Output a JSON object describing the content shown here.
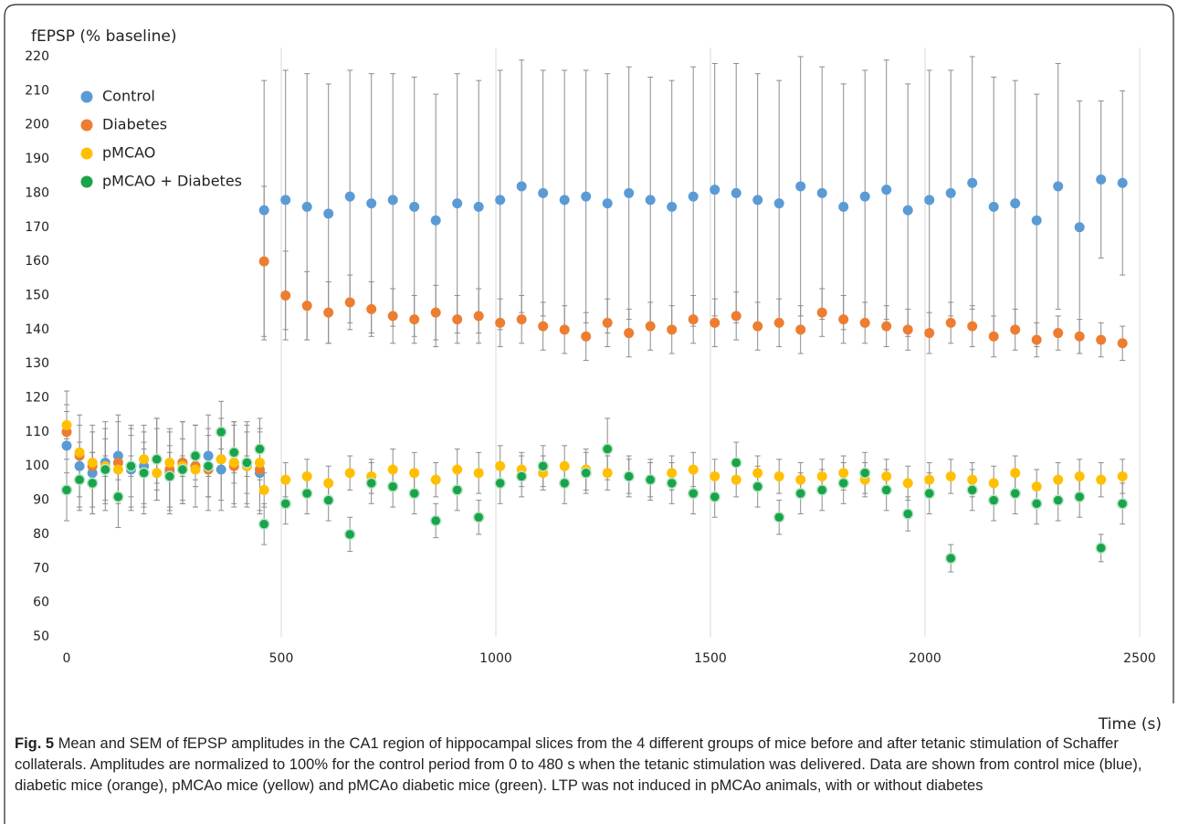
{
  "chart_data": {
    "type": "scatter",
    "y_label": "fEPSP (% baseline)",
    "x_label": "Time (s)",
    "x": [
      0,
      30,
      60,
      90,
      120,
      150,
      180,
      210,
      240,
      270,
      300,
      330,
      360,
      390,
      420,
      450,
      460,
      510,
      560,
      610,
      660,
      710,
      760,
      810,
      860,
      910,
      960,
      1010,
      1060,
      1110,
      1160,
      1210,
      1260,
      1310,
      1360,
      1410,
      1460,
      1510,
      1560,
      1610,
      1660,
      1710,
      1760,
      1810,
      1860,
      1910,
      1960,
      2010,
      2060,
      2110,
      2160,
      2210,
      2260,
      2310,
      2360,
      2410,
      2460
    ],
    "xlim": [
      0,
      2500
    ],
    "xticks": [
      0,
      500,
      1000,
      1500,
      2000,
      2500
    ],
    "ylim": [
      50,
      220
    ],
    "yticks": [
      50,
      60,
      70,
      80,
      90,
      100,
      110,
      120,
      130,
      140,
      150,
      160,
      170,
      180,
      190,
      200,
      210,
      220
    ],
    "grid": true,
    "legend": "top-left",
    "series": [
      {
        "name": "Control",
        "color": "#5b9bd5",
        "values": [
          106,
          100,
          98,
          101,
          103,
          99,
          100,
          102,
          98,
          101,
          100,
          103,
          99,
          101,
          100,
          98,
          175,
          178,
          176,
          174,
          179,
          177,
          178,
          176,
          172,
          177,
          176,
          178,
          182,
          180,
          178,
          179,
          177,
          180,
          178,
          176,
          179,
          181,
          180,
          178,
          177,
          182,
          180,
          176,
          179,
          181,
          175,
          178,
          180,
          183,
          176,
          177,
          172,
          182,
          170,
          184,
          183
        ],
        "errors": [
          12,
          12,
          12,
          12,
          12,
          12,
          12,
          12,
          12,
          12,
          12,
          12,
          12,
          12,
          12,
          12,
          38,
          38,
          39,
          38,
          37,
          38,
          37,
          38,
          37,
          38,
          37,
          38,
          37,
          36,
          38,
          37,
          38,
          37,
          36,
          37,
          38,
          37,
          38,
          37,
          36,
          38,
          37,
          36,
          37,
          38,
          37,
          38,
          36,
          37,
          38,
          36,
          37,
          36,
          37,
          23,
          27
        ]
      },
      {
        "name": "Diabetes",
        "color": "#ed7d31",
        "values": [
          110,
          103,
          100,
          99,
          101,
          100,
          98,
          102,
          99,
          101,
          100,
          99,
          102,
          100,
          101,
          99,
          160,
          150,
          147,
          145,
          148,
          146,
          144,
          143,
          145,
          143,
          144,
          142,
          143,
          141,
          140,
          138,
          142,
          139,
          141,
          140,
          143,
          142,
          144,
          141,
          142,
          140,
          145,
          143,
          142,
          141,
          140,
          139,
          142,
          141,
          138,
          140,
          137,
          139,
          138,
          137,
          136
        ],
        "errors": [
          12,
          12,
          12,
          12,
          12,
          12,
          12,
          12,
          12,
          12,
          12,
          12,
          12,
          12,
          12,
          12,
          22,
          13,
          10,
          9,
          8,
          8,
          8,
          7,
          8,
          7,
          8,
          7,
          7,
          7,
          7,
          7,
          7,
          7,
          7,
          7,
          7,
          7,
          7,
          7,
          7,
          7,
          7,
          7,
          6,
          6,
          6,
          6,
          6,
          6,
          6,
          6,
          5,
          5,
          5,
          5,
          5
        ]
      },
      {
        "name": "pMCAO",
        "color": "#ffc000",
        "values": [
          112,
          104,
          101,
          100,
          99,
          100,
          102,
          98,
          101,
          100,
          99,
          100,
          102,
          101,
          100,
          101,
          93,
          96,
          97,
          95,
          98,
          97,
          99,
          98,
          96,
          99,
          98,
          100,
          99,
          98,
          100,
          99,
          98,
          97,
          96,
          98,
          99,
          97,
          96,
          98,
          97,
          96,
          97,
          98,
          96,
          97,
          95,
          96,
          97,
          96,
          95,
          98,
          94,
          96,
          97,
          96,
          97
        ],
        "errors": [
          4,
          3,
          3,
          3,
          3,
          3,
          3,
          3,
          3,
          3,
          3,
          3,
          3,
          3,
          3,
          3,
          5,
          5,
          5,
          5,
          5,
          5,
          6,
          6,
          5,
          6,
          6,
          6,
          5,
          5,
          6,
          6,
          5,
          5,
          5,
          5,
          5,
          5,
          5,
          5,
          5,
          5,
          5,
          5,
          5,
          5,
          5,
          5,
          5,
          5,
          5,
          5,
          5,
          5,
          5,
          5,
          5
        ]
      },
      {
        "name": "pMCAO + Diabetes",
        "color": "#1aa34a",
        "values": [
          93,
          96,
          95,
          99,
          91,
          100,
          98,
          102,
          97,
          99,
          103,
          100,
          110,
          104,
          101,
          105,
          83,
          89,
          92,
          90,
          80,
          95,
          94,
          92,
          84,
          93,
          85,
          95,
          97,
          100,
          95,
          98,
          105,
          97,
          96,
          95,
          92,
          91,
          101,
          94,
          85,
          92,
          93,
          95,
          98,
          93,
          86,
          92,
          73,
          93,
          90,
          92,
          89,
          90,
          91,
          76,
          89
        ],
        "errors": [
          9,
          9,
          9,
          9,
          9,
          9,
          9,
          9,
          9,
          9,
          9,
          9,
          9,
          9,
          9,
          9,
          6,
          6,
          6,
          6,
          5,
          6,
          6,
          6,
          5,
          6,
          5,
          6,
          6,
          6,
          6,
          6,
          9,
          6,
          6,
          6,
          6,
          6,
          6,
          6,
          5,
          6,
          6,
          6,
          6,
          6,
          5,
          6,
          4,
          6,
          6,
          6,
          6,
          6,
          6,
          4,
          6
        ]
      }
    ]
  },
  "caption": {
    "label": "Fig. 5",
    "text": "Mean and SEM of fEPSP amplitudes in the CA1 region of hippocampal slices from the 4 different groups of mice before and after tetanic stimulation of Schaffer collaterals. Amplitudes are normalized to 100% for the control period from 0 to 480 s when the tetanic stimulation was delivered. Data are shown from control mice (blue), diabetic mice (orange), pMCAo mice (yellow) and pMCAo diabetic mice (green). LTP was not induced in pMCAo animals, with or without diabetes"
  }
}
